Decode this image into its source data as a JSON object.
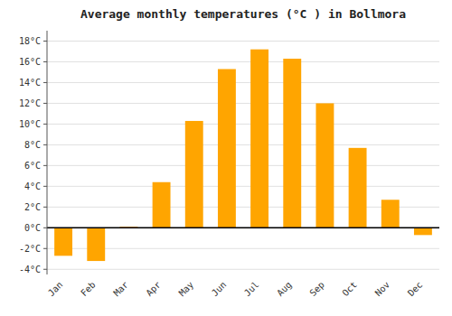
{
  "chart_data": {
    "type": "bar",
    "title": "Average monthly temperatures (°C ) in Bollmora",
    "categories": [
      "Jan",
      "Feb",
      "Mar",
      "Apr",
      "May",
      "Jun",
      "Jul",
      "Aug",
      "Sep",
      "Oct",
      "Nov",
      "Dec"
    ],
    "values": [
      -2.7,
      -3.2,
      0.1,
      4.4,
      10.3,
      15.3,
      17.2,
      16.3,
      12.0,
      7.7,
      2.7,
      -0.7
    ],
    "color": "#FFA500",
    "ylim": [
      -4.5,
      19
    ],
    "yticks": [
      {
        "value": -4,
        "label": "-4°C"
      },
      {
        "value": -2,
        "label": "-2°C"
      },
      {
        "value": 0,
        "label": "0°C"
      },
      {
        "value": 2,
        "label": "2°C"
      },
      {
        "value": 4,
        "label": "4°C"
      },
      {
        "value": 6,
        "label": "6°C"
      },
      {
        "value": 8,
        "label": "8°C"
      },
      {
        "value": 10,
        "label": "10°C"
      },
      {
        "value": 12,
        "label": "12°C"
      },
      {
        "value": 14,
        "label": "14°C"
      },
      {
        "value": 16,
        "label": "16°C"
      },
      {
        "value": 18,
        "label": "18°C"
      }
    ],
    "grid": true
  }
}
